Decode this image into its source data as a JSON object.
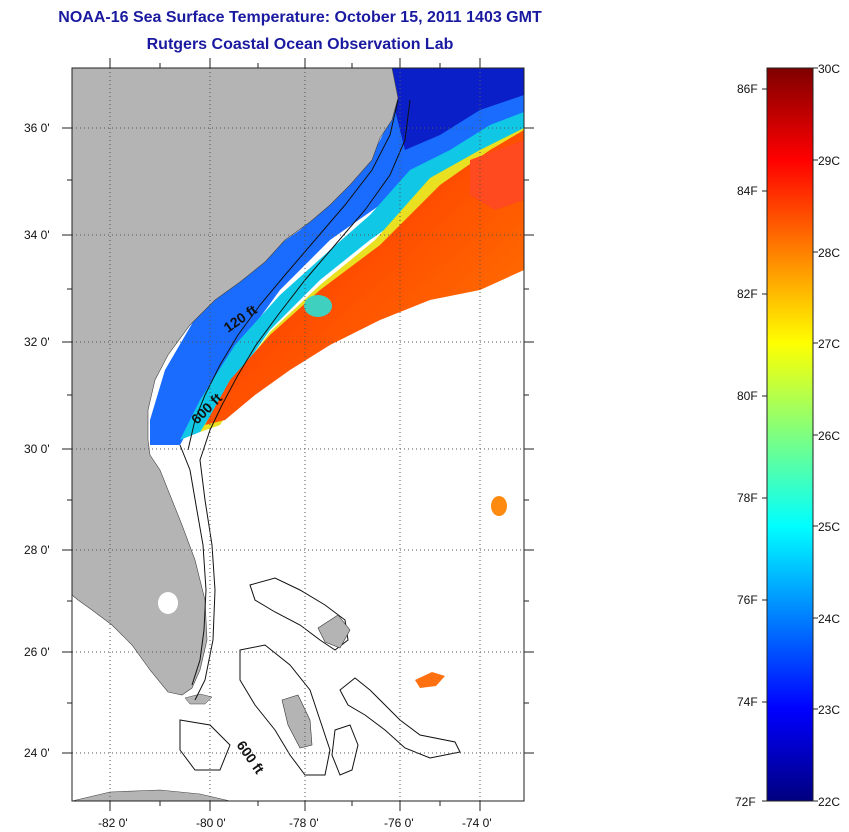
{
  "header": {
    "title_line_1": "NOAA-16 Sea Surface Temperature:  October 15, 2011 1403 GMT",
    "title_line_2": "Rutgers Coastal Ocean Observation Lab"
  },
  "map": {
    "lat_labels": [
      "36 0'",
      "34 0'",
      "32 0'",
      "30 0'",
      "28 0'",
      "26 0'",
      "24 0'"
    ],
    "lon_labels": [
      "-82 0'",
      "-80 0'",
      "-78 0'",
      "-76 0'",
      "-74 0'"
    ],
    "contour_labels": [
      "120 ft",
      "600 ft",
      "600 ft"
    ],
    "colors": {
      "land": "#b4b4b4",
      "ocean_nodata": "#ffffff",
      "grid": "#333333"
    }
  },
  "colorbar": {
    "fahrenheit_labels": [
      "86F",
      "84F",
      "82F",
      "80F",
      "78F",
      "76F",
      "74F",
      "72F"
    ],
    "celsius_labels": [
      "30C",
      "29C",
      "28C",
      "27C",
      "26C",
      "25C",
      "24C",
      "23C",
      "22C"
    ],
    "min_c": 22,
    "max_c": 30,
    "colors": [
      "#00007f",
      "#0000ff",
      "#007fff",
      "#00ffff",
      "#7fff7f",
      "#ffff00",
      "#ff7f00",
      "#ff0000",
      "#7f0000"
    ]
  }
}
